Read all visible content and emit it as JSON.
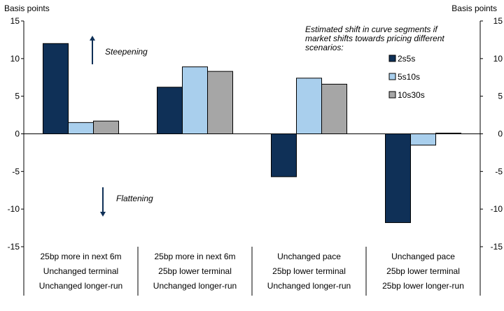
{
  "chart_data": {
    "type": "bar",
    "ylabel_left": "Basis points",
    "ylabel_right": "Basis points",
    "ylim": [
      -15,
      15
    ],
    "yticks": [
      15,
      10,
      5,
      0,
      -5,
      -10,
      -15
    ],
    "grid": false,
    "legend_position": "top-right",
    "legend_title": [
      "Estimated shift in curve segments if",
      "market shifts towards pricing different",
      "scenarios:"
    ],
    "categories": [
      [
        "25bp more in next 6m",
        "Unchanged terminal",
        "Unchanged longer-run"
      ],
      [
        "25bp more in next 6m",
        "25bp lower terminal",
        "Unchanged longer-run"
      ],
      [
        "Unchanged pace",
        "25bp lower terminal",
        "Unchanged longer-run"
      ],
      [
        "Unchanged pace",
        "25bp lower terminal",
        "25bp lower longer-run"
      ]
    ],
    "series": [
      {
        "name": "2s5s",
        "color": "#0f3057",
        "values": [
          12.0,
          6.2,
          -5.7,
          -11.8
        ]
      },
      {
        "name": "5s10s",
        "color": "#a9cfed",
        "values": [
          1.5,
          8.9,
          7.4,
          -1.5
        ]
      },
      {
        "name": "10s30s",
        "color": "#a6a6a6",
        "values": [
          1.7,
          8.3,
          6.6,
          0.1
        ]
      }
    ],
    "annotations": [
      {
        "text": "Steepening",
        "arrow": "up",
        "color": "#0f3057"
      },
      {
        "text": "Flattening",
        "arrow": "down",
        "color": "#0f3057"
      }
    ]
  }
}
